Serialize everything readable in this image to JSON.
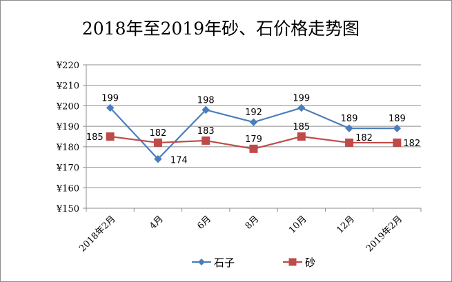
{
  "chart_data": {
    "type": "line",
    "title": "2018年至2019年砂、石价格走势图",
    "categories": [
      "2018年2月",
      "4月",
      "6月",
      "8月",
      "10月",
      "12月",
      "2019年2月"
    ],
    "y_tick_labels": [
      "¥150",
      "¥160",
      "¥170",
      "¥180",
      "¥190",
      "¥200",
      "¥210",
      "¥220"
    ],
    "ylim": [
      150,
      220
    ],
    "y_step": 10,
    "grid": true,
    "legend_position": "bottom",
    "series": [
      {
        "name": "石子",
        "values": [
          199,
          174,
          198,
          192,
          199,
          189,
          189
        ],
        "color": "#4a7ebb",
        "marker": "diamond"
      },
      {
        "name": "砂",
        "values": [
          185,
          182,
          183,
          179,
          185,
          182,
          182
        ],
        "color": "#be4b48",
        "marker": "square"
      }
    ]
  }
}
